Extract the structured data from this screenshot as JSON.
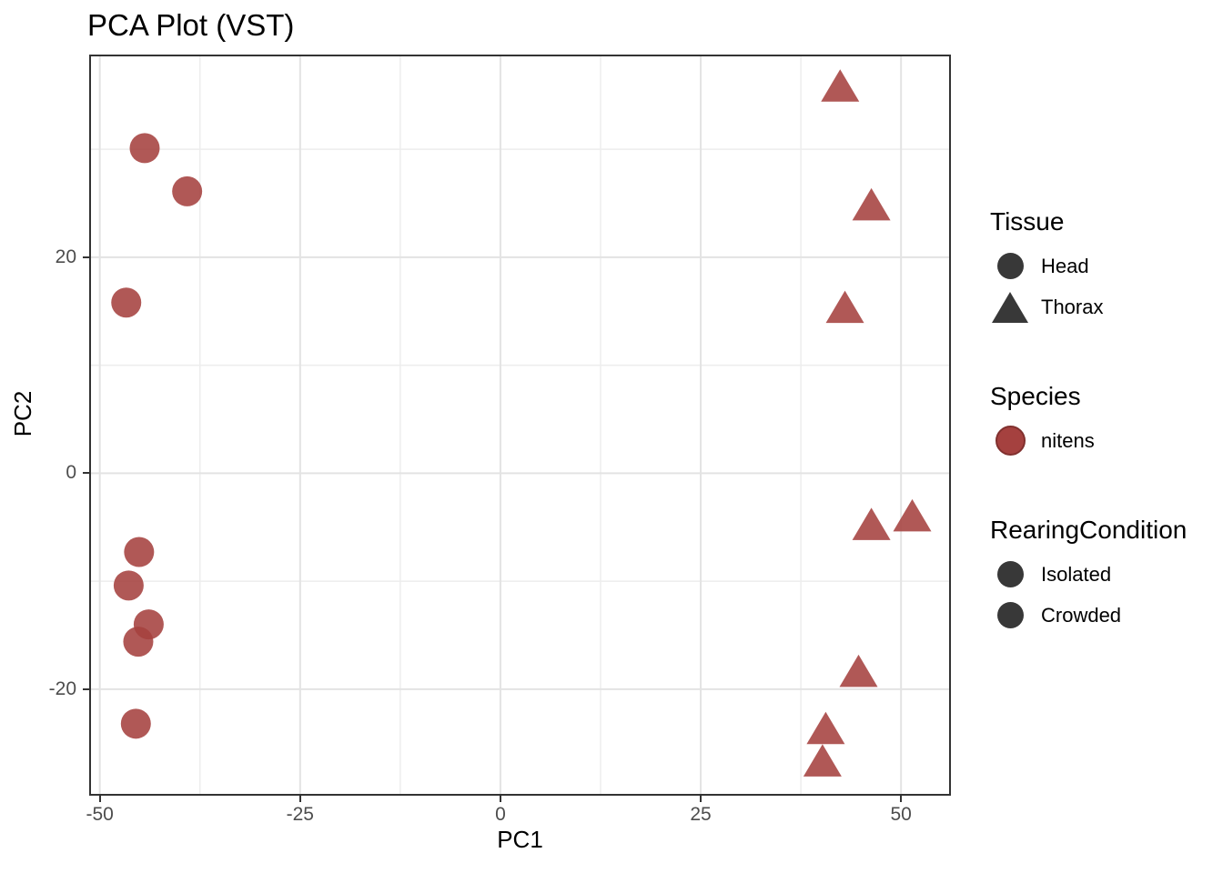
{
  "title": "PCA Plot (VST)",
  "colors": {
    "point_red": "#A5413F",
    "point_red_edge": "#81302E",
    "point_dark": "#383838",
    "grid_major": "#E3E3E3",
    "grid_minor": "#EDEDED",
    "panel_border": "#333333",
    "tick_text": "#4D4D4D"
  },
  "chart_data": {
    "type": "scatter",
    "title": "PCA Plot (VST)",
    "xlabel": "PC1",
    "ylabel": "PC2",
    "xlim": [
      -51.1,
      56.0
    ],
    "ylim": [
      -29.7,
      38.6
    ],
    "x_major_ticks": [
      -50,
      -25,
      0,
      25,
      50
    ],
    "x_minor_ticks": [
      -37.5,
      -12.5,
      12.5,
      37.5
    ],
    "y_major_ticks": [
      -20,
      0,
      20
    ],
    "y_minor_ticks": [
      -30,
      -10,
      10,
      30
    ],
    "grid": true,
    "legend_position": "right",
    "series": [
      {
        "name": "Head",
        "shape": "circle",
        "color": "#A5413F",
        "points": [
          [
            -44.4,
            30.1
          ],
          [
            -39.1,
            26.1
          ],
          [
            -46.7,
            15.8
          ],
          [
            -45.1,
            -7.3
          ],
          [
            -46.4,
            -10.4
          ],
          [
            -43.9,
            -14.0
          ],
          [
            -45.2,
            -15.6
          ],
          [
            -45.5,
            -23.2
          ]
        ]
      },
      {
        "name": "Thorax",
        "shape": "triangle",
        "color": "#A5413F",
        "points": [
          [
            42.4,
            35.8
          ],
          [
            46.3,
            24.8
          ],
          [
            43.0,
            15.3
          ],
          [
            46.3,
            -4.8
          ],
          [
            51.4,
            -4.0
          ],
          [
            44.7,
            -18.4
          ],
          [
            40.6,
            -23.7
          ],
          [
            40.2,
            -26.7
          ]
        ]
      }
    ]
  },
  "legend": {
    "groups": [
      {
        "title": "Tissue",
        "items": [
          {
            "label": "Head",
            "shape": "circle",
            "color": "#383838"
          },
          {
            "label": "Thorax",
            "shape": "triangle",
            "color": "#383838"
          }
        ]
      },
      {
        "title": "Species",
        "items": [
          {
            "label": "nitens",
            "shape": "circle",
            "color": "#A5413F"
          }
        ]
      },
      {
        "title": "RearingCondition",
        "items": [
          {
            "label": "Isolated",
            "shape": "circle",
            "color": "#383838"
          },
          {
            "label": "Crowded",
            "shape": "circle",
            "color": "#383838"
          }
        ]
      }
    ]
  }
}
